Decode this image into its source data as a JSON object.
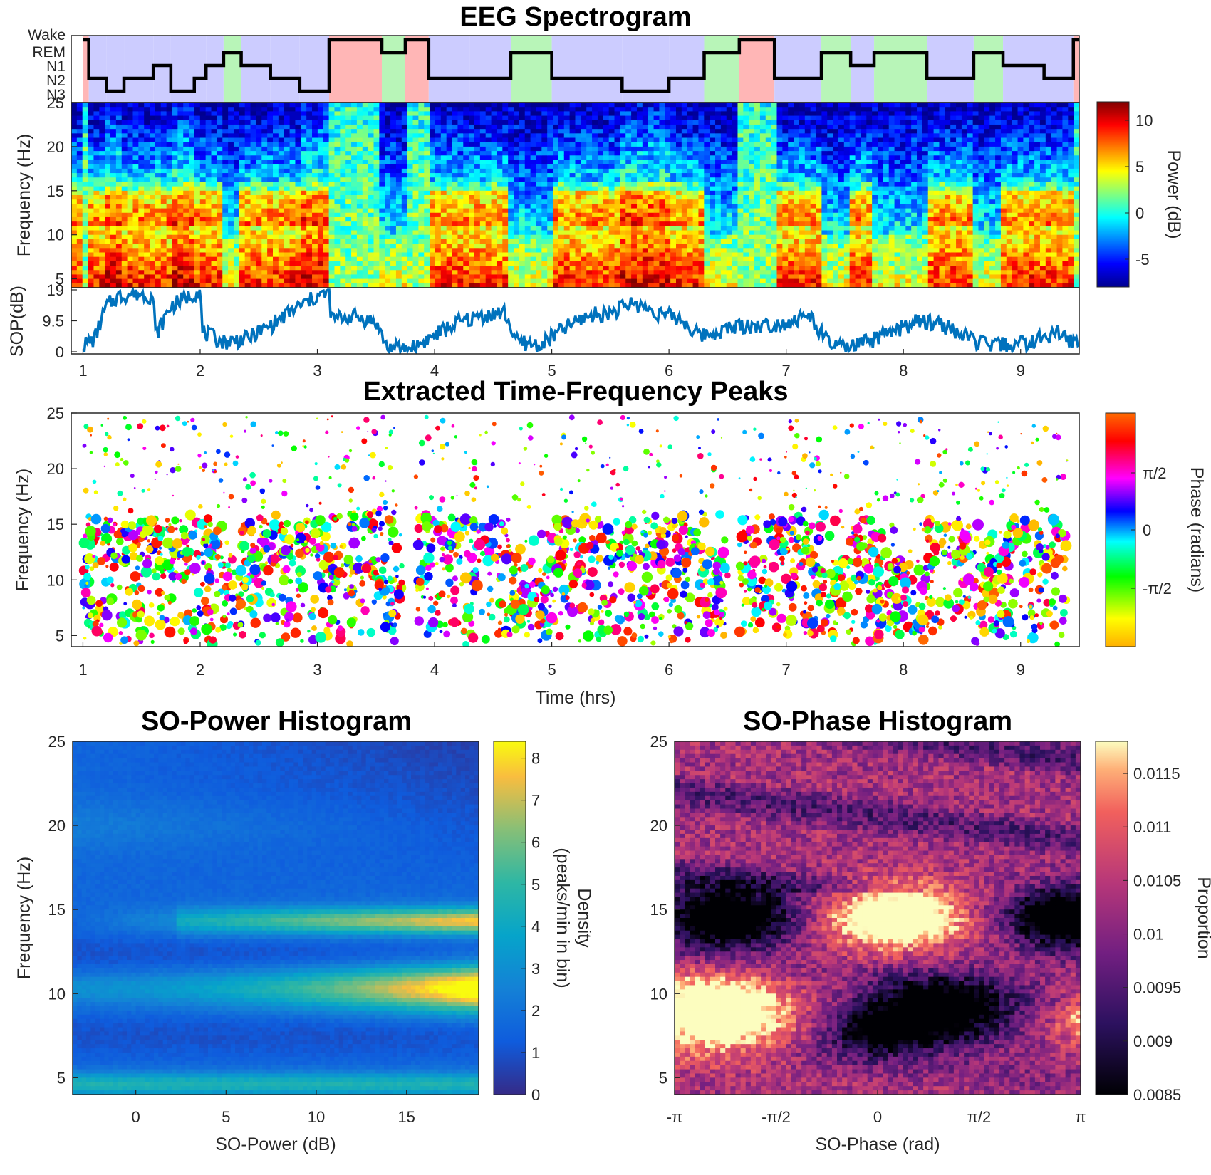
{
  "figure": {
    "spectrogram_title": "EEG Spectrogram",
    "peaks_title": "Extracted Time-Frequency Peaks",
    "so_power_title": "SO-Power Histogram",
    "so_phase_title": "SO-Phase Histogram"
  },
  "colors": {
    "stage_wake": "#ffb6b6",
    "stage_rem": "#b8f5b8",
    "stage_nrem": "#ccccff",
    "sop_line": "#0072bd"
  },
  "chart_data": [
    {
      "type": "line",
      "subtype": "hypnogram",
      "stages": [
        "Wake",
        "REM",
        "N1",
        "N2",
        "N3"
      ],
      "x": [
        1.0,
        1.05,
        1.2,
        1.35,
        1.6,
        1.75,
        1.95,
        2.05,
        2.2,
        2.35,
        2.6,
        2.85,
        3.1,
        3.55,
        3.75,
        3.95,
        4.3,
        4.65,
        5.0,
        5.2,
        5.6,
        6.0,
        6.3,
        6.6,
        6.9,
        7.3,
        7.55,
        7.75,
        8.2,
        8.6,
        8.85,
        9.2,
        9.45,
        9.5
      ],
      "stage_index": [
        0,
        3,
        4,
        3,
        2,
        4,
        3,
        2,
        1,
        2,
        3,
        4,
        0,
        1,
        0,
        3,
        3,
        1,
        3,
        3,
        4,
        3,
        1,
        0,
        3,
        1,
        2,
        1,
        3,
        1,
        2,
        3,
        0,
        0
      ],
      "xlim": [
        0.9,
        9.5
      ],
      "ylabel": ""
    },
    {
      "type": "heatmap",
      "subtype": "spectrogram",
      "xlim": [
        0.9,
        9.5
      ],
      "ylim": [
        4,
        25
      ],
      "y_ticks": [
        5,
        10,
        15,
        20,
        25
      ],
      "ylabel": "Frequency (Hz)",
      "colorbar": {
        "label": "Power (dB)",
        "range": [
          -8,
          12
        ],
        "ticks": [
          -5,
          0,
          5,
          10
        ],
        "colormap": "jet"
      }
    },
    {
      "type": "line",
      "subtype": "SO-power trace",
      "x": [
        1.0,
        1.1,
        1.2,
        1.3,
        1.45,
        1.6,
        1.62,
        1.75,
        1.9,
        2.0,
        2.02,
        2.2,
        2.4,
        2.6,
        2.8,
        3.0,
        3.1,
        3.12,
        3.3,
        3.5,
        3.6,
        3.8,
        4.0,
        4.2,
        4.4,
        4.6,
        4.7,
        4.9,
        5.1,
        5.3,
        5.5,
        5.7,
        5.9,
        6.1,
        6.25,
        6.4,
        6.6,
        6.8,
        7.0,
        7.2,
        7.35,
        7.5,
        7.7,
        7.9,
        8.1,
        8.3,
        8.5,
        8.7,
        8.9,
        9.1,
        9.3,
        9.5
      ],
      "y": [
        2,
        4,
        14,
        17,
        18,
        17,
        5,
        14,
        17,
        19,
        6,
        3,
        4,
        8,
        13,
        17,
        18,
        10,
        11,
        9,
        1,
        1,
        5,
        9,
        11,
        12,
        3,
        2,
        7,
        11,
        12,
        15,
        12,
        10,
        5,
        6,
        8,
        8,
        9,
        11,
        3,
        1,
        3,
        6,
        9,
        9,
        5,
        2,
        2,
        3,
        6,
        2
      ],
      "xlim": [
        0.9,
        9.5
      ],
      "ylim": [
        0,
        19
      ],
      "y_ticks": [
        0,
        9.5,
        19
      ],
      "ylabel": "SOP(dB)",
      "x_ticks": [
        1,
        2,
        3,
        4,
        5,
        6,
        7,
        8,
        9
      ]
    },
    {
      "type": "scatter",
      "subtype": "time-frequency peaks colored by phase",
      "title": "Extracted Time-Frequency Peaks",
      "xlim": [
        0.9,
        9.5
      ],
      "ylim": [
        4,
        25
      ],
      "x_ticks": [
        1,
        2,
        3,
        4,
        5,
        6,
        7,
        8,
        9
      ],
      "y_ticks": [
        5,
        10,
        15,
        20,
        25
      ],
      "xlabel": "Time (hrs)",
      "ylabel": "Frequency (Hz)",
      "colorbar": {
        "label": "Phase (radians)",
        "ticks": [
          "π/2",
          "0",
          "-π/2"
        ],
        "colormap": "hsv"
      }
    },
    {
      "type": "heatmap",
      "title": "SO-Power Histogram",
      "xlim": [
        -3.5,
        19
      ],
      "ylim": [
        4,
        25
      ],
      "x_ticks": [
        0,
        5,
        10,
        15
      ],
      "y_ticks": [
        5,
        10,
        15,
        20,
        25
      ],
      "xlabel": "SO-Power (dB)",
      "ylabel": "Frequency (Hz)",
      "colorbar": {
        "label": "Density (peaks/min in bin)",
        "range": [
          0,
          8.4
        ],
        "ticks": [
          0,
          1,
          2,
          3,
          4,
          5,
          6,
          7,
          8
        ],
        "colormap": "parula"
      }
    },
    {
      "type": "heatmap",
      "title": "SO-Phase Histogram",
      "xlim": [
        -3.1416,
        3.1416
      ],
      "ylim": [
        4,
        25
      ],
      "x_ticks": [
        "-π",
        "-π/2",
        "0",
        "π/2",
        "π"
      ],
      "y_ticks": [
        5,
        10,
        15,
        20,
        25
      ],
      "xlabel": "SO-Phase (rad)",
      "ylabel": "",
      "colorbar": {
        "label": "Proportion",
        "range": [
          0.0085,
          0.0118
        ],
        "ticks": [
          0.0085,
          0.009,
          0.0095,
          0.01,
          0.0105,
          0.011,
          0.0115
        ],
        "colormap": "magma"
      }
    }
  ],
  "labels": {
    "spec_ylabel": "Frequency (Hz)",
    "spec_cbar": "Power (dB)",
    "sop_ylabel": "SOP(dB)",
    "peaks_ylabel": "Frequency (Hz)",
    "peaks_xlabel": "Time (hrs)",
    "peaks_cbar": "Phase (radians)",
    "pow_xlabel": "SO-Power (dB)",
    "pow_ylabel": "Frequency (Hz)",
    "pow_cbar_1": "Density",
    "pow_cbar_2": "(peaks/min in bin)",
    "phase_xlabel": "SO-Phase (rad)",
    "phase_cbar": "Proportion",
    "stage_wake": "Wake",
    "stage_rem": "REM",
    "stage_n1": "N1",
    "stage_n2": "N2",
    "stage_n3": "N3"
  }
}
